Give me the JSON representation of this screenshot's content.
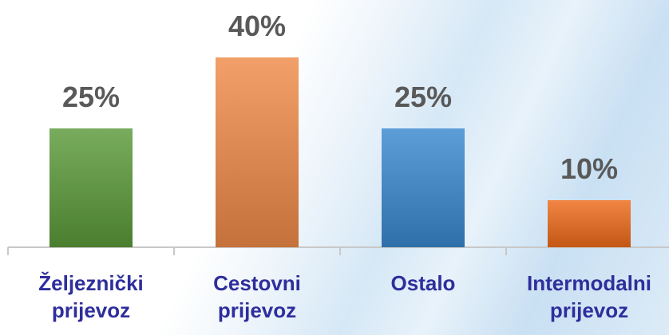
{
  "chart_data": {
    "type": "bar",
    "categories": [
      "Željeznički prijevoz",
      "Cestovni prijevoz",
      "Ostalo",
      "Intermodalni prijevoz"
    ],
    "values": [
      25,
      40,
      25,
      10
    ],
    "value_labels": [
      "25%",
      "40%",
      "25%",
      "10%"
    ],
    "colors": [
      "#5b9a3a",
      "#f08a48",
      "#3a88cf",
      "#ee6a1a"
    ]
  }
}
